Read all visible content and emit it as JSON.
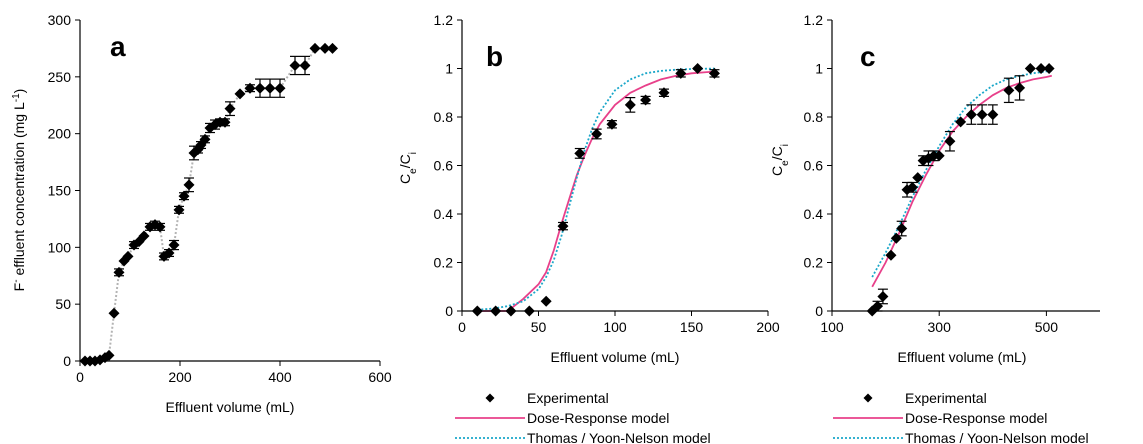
{
  "colors": {
    "marker": "#000000",
    "dose_response": "#e8408a",
    "thomas": "#1aa7c9",
    "connector": "#b4b4b4",
    "axis": "#000000"
  },
  "chart_data": [
    {
      "type": "scatter",
      "panel_label": "a",
      "xlabel": "Effluent volume (mL)",
      "ylabel_parts": {
        "main": "F",
        "sup1": "-",
        "mid": " effluent concentration (mg L",
        "sup2": "-1",
        "end": ")"
      },
      "xlim": [
        0,
        600
      ],
      "ylim": [
        0,
        300
      ],
      "xticks": [
        "0",
        "200",
        "400",
        "600"
      ],
      "yticks": [
        "0",
        "50",
        "100",
        "150",
        "200",
        "250",
        "300"
      ],
      "grid": false,
      "connector": "dotted",
      "series": [
        {
          "x": [
            10,
            20,
            30,
            40,
            50,
            58,
            68,
            78,
            88,
            96,
            108,
            118,
            128,
            140,
            150,
            160,
            168,
            178,
            188,
            198,
            208,
            218,
            228,
            236,
            242,
            250,
            260,
            270,
            280,
            290,
            300,
            320,
            340,
            360,
            380,
            400,
            430,
            450,
            470,
            490,
            505
          ],
          "y": [
            0,
            0,
            0,
            1,
            3,
            5,
            42,
            78,
            88,
            92,
            102,
            105,
            110,
            118,
            120,
            118,
            92,
            95,
            102,
            133,
            145,
            155,
            183,
            186,
            190,
            195,
            205,
            208,
            210,
            210,
            222,
            235,
            240,
            240,
            240,
            240,
            260,
            260,
            275,
            275,
            275
          ],
          "err": [
            0,
            0,
            0,
            0,
            0,
            0,
            2,
            3,
            2,
            2,
            3,
            2,
            2,
            3,
            3,
            3,
            3,
            3,
            4,
            3,
            3,
            6,
            6,
            3,
            3,
            3,
            4,
            4,
            3,
            3,
            6,
            2,
            3,
            8,
            8,
            8,
            8,
            8,
            2,
            2,
            2
          ]
        }
      ]
    },
    {
      "type": "scatter",
      "panel_label": "b",
      "xlabel": "Effluent volume (mL)",
      "ylabel_parts": {
        "main": "C",
        "sub1": "e",
        "mid": "/C",
        "sub2": "i"
      },
      "xlim": [
        0,
        200
      ],
      "ylim": [
        0,
        1.2
      ],
      "xticks": [
        "0",
        "50",
        "100",
        "150",
        "200"
      ],
      "yticks": [
        "0",
        "0.2",
        "0.4",
        "0.6",
        "0.8",
        "1",
        "1.2"
      ],
      "grid": false,
      "series": [
        {
          "name": "Experimental",
          "x": [
            10,
            22,
            32,
            44,
            55,
            66,
            77,
            88,
            98,
            110,
            120,
            132,
            143,
            154,
            165
          ],
          "y": [
            0,
            0,
            0,
            0,
            0.04,
            0.35,
            0.65,
            0.73,
            0.77,
            0.85,
            0.87,
            0.9,
            0.98,
            1.0,
            0.98
          ],
          "err": [
            0.005,
            0.005,
            0.005,
            0.005,
            0.01,
            0.015,
            0.02,
            0.02,
            0.015,
            0.03,
            0.015,
            0.015,
            0.015,
            0.005,
            0.015
          ]
        },
        {
          "name": "Dose-Response model",
          "x": [
            10,
            20,
            30,
            40,
            50,
            55,
            60,
            65,
            70,
            75,
            80,
            85,
            90,
            100,
            110,
            120,
            130,
            140,
            150,
            160,
            165
          ],
          "y": [
            0,
            0,
            0,
            0.05,
            0.11,
            0.16,
            0.25,
            0.36,
            0.46,
            0.56,
            0.64,
            0.71,
            0.77,
            0.85,
            0.9,
            0.93,
            0.955,
            0.97,
            0.98,
            0.985,
            0.987
          ]
        },
        {
          "name": "Thomas / Yoon-Nelson model",
          "x": [
            10,
            20,
            30,
            40,
            50,
            55,
            60,
            65,
            70,
            75,
            80,
            85,
            90,
            100,
            110,
            120,
            130,
            140,
            150,
            160,
            165
          ],
          "y": [
            0.005,
            0.01,
            0.02,
            0.04,
            0.09,
            0.14,
            0.21,
            0.31,
            0.43,
            0.55,
            0.66,
            0.75,
            0.82,
            0.91,
            0.955,
            0.98,
            0.99,
            0.995,
            0.998,
            0.999,
            1.0
          ]
        }
      ],
      "legend": [
        "Experimental",
        "Dose-Response model",
        "Thomas / Yoon-Nelson model"
      ],
      "legend_position": "below"
    },
    {
      "type": "scatter",
      "panel_label": "c",
      "xlabel": "Effluent volume (mL)",
      "ylabel_parts": {
        "main": "C",
        "sub1": "e",
        "mid": "/C",
        "sub2": "i"
      },
      "xlim": [
        100,
        600
      ],
      "ylim": [
        0,
        1.2
      ],
      "xticks": [
        "100",
        "300",
        "500"
      ],
      "xtick_values": [
        100,
        300,
        500
      ],
      "yticks": [
        "0",
        "0.2",
        "0.4",
        "0.6",
        "0.8",
        "1",
        "1.2"
      ],
      "grid": false,
      "series": [
        {
          "name": "Experimental",
          "x": [
            175,
            185,
            195,
            210,
            220,
            230,
            240,
            250,
            260,
            270,
            280,
            290,
            300,
            320,
            340,
            360,
            380,
            400,
            430,
            450,
            470,
            490,
            505
          ],
          "y": [
            0.0,
            0.02,
            0.06,
            0.23,
            0.3,
            0.34,
            0.5,
            0.51,
            0.55,
            0.62,
            0.63,
            0.64,
            0.64,
            0.7,
            0.78,
            0.81,
            0.81,
            0.81,
            0.91,
            0.92,
            1.0,
            1.0,
            1.0
          ],
          "err": [
            0.01,
            0.02,
            0.03,
            0.01,
            0.01,
            0.03,
            0.03,
            0.02,
            0.01,
            0.02,
            0.03,
            0.02,
            0.01,
            0.04,
            0.01,
            0.04,
            0.04,
            0.04,
            0.05,
            0.05,
            0.005,
            0.005,
            0.005
          ]
        },
        {
          "name": "Dose-Response model",
          "x": [
            175,
            200,
            225,
            250,
            275,
            300,
            325,
            350,
            375,
            400,
            425,
            450,
            475,
            500,
            510
          ],
          "y": [
            0.1,
            0.2,
            0.32,
            0.45,
            0.56,
            0.66,
            0.74,
            0.8,
            0.85,
            0.89,
            0.92,
            0.94,
            0.955,
            0.965,
            0.97
          ]
        },
        {
          "name": "Thomas / Yoon-Nelson model",
          "x": [
            175,
            200,
            225,
            250,
            275,
            300,
            325,
            350,
            375,
            400,
            425,
            450,
            475,
            500,
            510
          ],
          "y": [
            0.14,
            0.24,
            0.35,
            0.47,
            0.58,
            0.68,
            0.77,
            0.84,
            0.89,
            0.93,
            0.955,
            0.97,
            0.98,
            0.988,
            0.99
          ]
        }
      ],
      "legend": [
        "Experimental",
        "Dose-Response model",
        "Thomas / Yoon-Nelson model"
      ],
      "legend_position": "below"
    }
  ]
}
